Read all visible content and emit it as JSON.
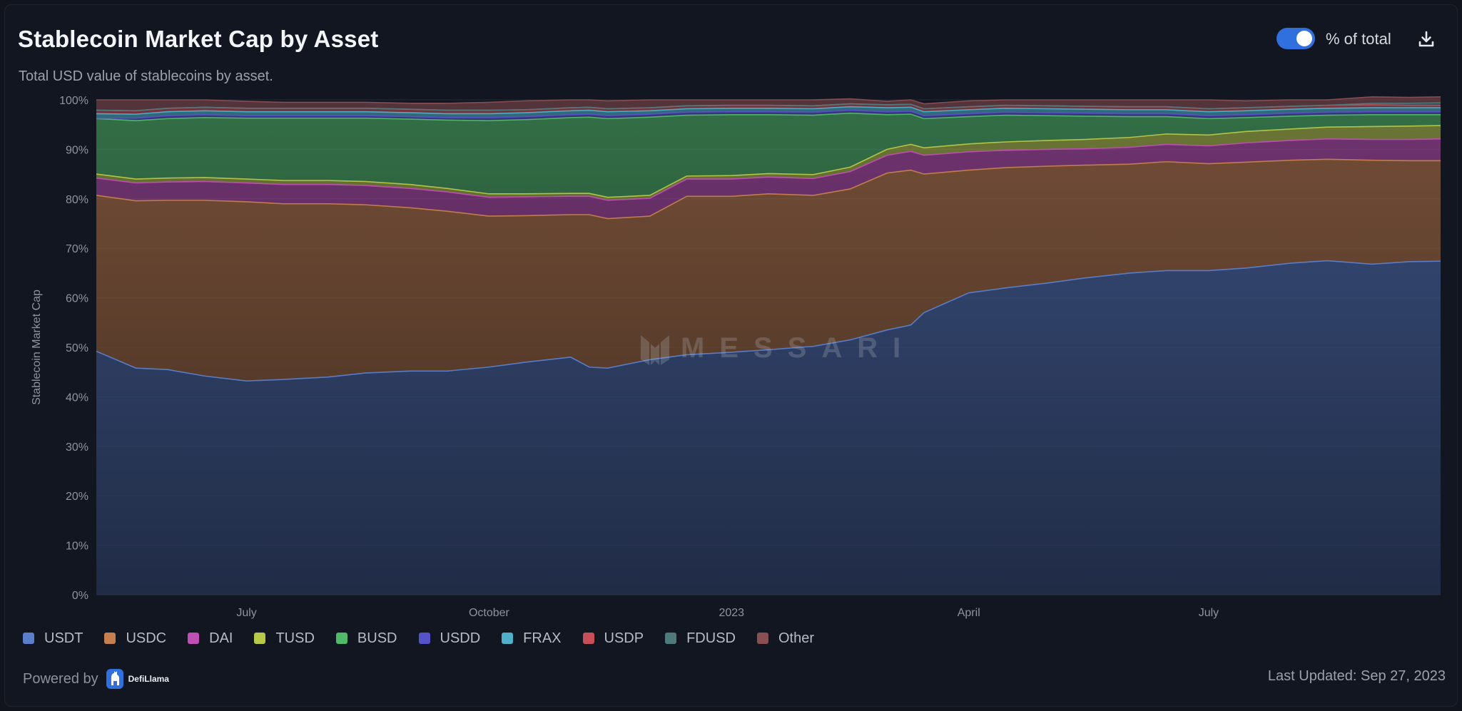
{
  "header": {
    "title": "Stablecoin Market Cap by Asset",
    "subtitle": "Total USD value of stablecoins by asset.",
    "toggle_label": "% of total",
    "toggle_on": true,
    "download_icon": "download-icon"
  },
  "watermark": "MESSARI",
  "footer": {
    "powered_by": "Powered by",
    "brand": "DefiLlama",
    "last_updated": "Last Updated: Sep 27, 2023"
  },
  "chart_data": {
    "type": "area",
    "stacked": true,
    "percent": true,
    "ylabel": "Stablecoin Market Cap",
    "ylim": [
      0,
      100
    ],
    "yticks": [
      "0%",
      "10%",
      "20%",
      "30%",
      "40%",
      "50%",
      "60%",
      "70%",
      "80%",
      "90%",
      "100%"
    ],
    "grid": true,
    "legend_position": "bottom-left",
    "xlim": [
      "2022-05-05",
      "2023-09-27"
    ],
    "xticks": [
      {
        "label": "July",
        "date": "2022-07-01"
      },
      {
        "label": "October",
        "date": "2022-10-01"
      },
      {
        "label": "2023",
        "date": "2023-01-01"
      },
      {
        "label": "April",
        "date": "2023-04-01"
      },
      {
        "label": "July",
        "date": "2023-07-01"
      }
    ],
    "x": [
      "2022-05-05",
      "2022-05-20",
      "2022-06-01",
      "2022-06-15",
      "2022-07-01",
      "2022-07-15",
      "2022-08-01",
      "2022-08-15",
      "2022-09-01",
      "2022-09-15",
      "2022-10-01",
      "2022-10-15",
      "2022-11-01",
      "2022-11-08",
      "2022-11-15",
      "2022-12-01",
      "2022-12-15",
      "2023-01-01",
      "2023-01-15",
      "2023-02-01",
      "2023-02-15",
      "2023-03-01",
      "2023-03-10",
      "2023-03-15",
      "2023-04-01",
      "2023-04-15",
      "2023-05-01",
      "2023-05-15",
      "2023-06-01",
      "2023-06-15",
      "2023-07-01",
      "2023-07-15",
      "2023-08-01",
      "2023-08-15",
      "2023-09-01",
      "2023-09-15",
      "2023-09-27"
    ],
    "series": [
      {
        "name": "USDT",
        "color": "#5b7fcc",
        "values": [
          49.2,
          45.8,
          45.5,
          44.2,
          43.2,
          43.5,
          44.0,
          44.8,
          45.2,
          45.2,
          46.0,
          47.0,
          48.0,
          46.0,
          45.8,
          47.5,
          48.5,
          49.0,
          49.5,
          50.2,
          51.5,
          53.5,
          54.5,
          57.0,
          61.0,
          62.0,
          63.0,
          64.0,
          65.0,
          65.5,
          65.5,
          66.0,
          67.0,
          67.5,
          66.8,
          67.3,
          67.4
        ]
      },
      {
        "name": "USDC",
        "color": "#c77f4d",
        "values": [
          31.5,
          33.8,
          34.2,
          35.5,
          36.2,
          35.5,
          35.0,
          34.0,
          33.0,
          32.3,
          30.5,
          29.6,
          28.8,
          30.8,
          30.2,
          29.0,
          32.0,
          31.5,
          31.5,
          30.5,
          30.5,
          31.7,
          31.3,
          28.0,
          24.8,
          24.3,
          23.6,
          22.8,
          22.0,
          22.0,
          21.6,
          21.4,
          20.8,
          20.5,
          21.0,
          20.4,
          20.3
        ]
      },
      {
        "name": "DAI",
        "color": "#c04fb5",
        "values": [
          3.5,
          3.6,
          3.7,
          3.8,
          3.8,
          3.9,
          3.9,
          3.9,
          3.9,
          3.9,
          3.8,
          3.8,
          3.7,
          3.7,
          3.7,
          3.6,
          3.5,
          3.5,
          3.4,
          3.4,
          3.5,
          3.6,
          3.8,
          3.8,
          3.7,
          3.5,
          3.4,
          3.3,
          3.4,
          3.5,
          3.6,
          3.9,
          4.0,
          4.1,
          4.2,
          4.3,
          4.4
        ]
      },
      {
        "name": "TUSD",
        "color": "#b6c949",
        "values": [
          0.8,
          0.8,
          0.8,
          0.8,
          0.8,
          0.8,
          0.8,
          0.8,
          0.8,
          0.7,
          0.7,
          0.6,
          0.6,
          0.6,
          0.6,
          0.6,
          0.6,
          0.7,
          0.7,
          0.8,
          0.9,
          1.2,
          1.4,
          1.5,
          1.6,
          1.7,
          1.8,
          1.9,
          2.0,
          2.1,
          2.2,
          2.3,
          2.3,
          2.4,
          2.6,
          2.7,
          2.7
        ]
      },
      {
        "name": "BUSD",
        "color": "#4fb968",
        "values": [
          11.2,
          11.8,
          12.0,
          12.1,
          12.3,
          12.6,
          12.6,
          12.8,
          13.2,
          13.8,
          14.8,
          15.0,
          15.3,
          15.4,
          15.9,
          15.8,
          12.3,
          12.3,
          11.9,
          12.0,
          10.9,
          7.0,
          6.1,
          5.9,
          5.5,
          5.4,
          5.0,
          4.7,
          4.2,
          3.5,
          3.3,
          2.8,
          2.6,
          2.4,
          2.4,
          2.3,
          2.2
        ]
      },
      {
        "name": "USDD",
        "color": "#5752c9",
        "values": [
          0.1,
          0.5,
          0.6,
          0.6,
          0.5,
          0.5,
          0.5,
          0.5,
          0.5,
          0.5,
          0.6,
          0.6,
          0.6,
          0.6,
          0.6,
          0.6,
          0.6,
          0.6,
          0.6,
          0.6,
          0.6,
          0.6,
          0.6,
          0.6,
          0.6,
          0.6,
          0.6,
          0.6,
          0.6,
          0.6,
          0.6,
          0.6,
          0.6,
          0.6,
          0.6,
          0.6,
          0.6
        ]
      },
      {
        "name": "FRAX",
        "color": "#4fb1c9",
        "values": [
          0.9,
          0.8,
          0.8,
          0.8,
          0.8,
          0.8,
          0.8,
          0.8,
          0.8,
          0.8,
          0.8,
          0.8,
          0.8,
          0.8,
          0.8,
          0.7,
          0.7,
          0.7,
          0.7,
          0.7,
          0.7,
          0.8,
          0.8,
          0.8,
          0.8,
          0.8,
          0.8,
          0.8,
          0.8,
          0.8,
          0.8,
          0.8,
          0.8,
          0.8,
          0.8,
          0.8,
          0.8
        ]
      },
      {
        "name": "USDP",
        "color": "#c94f57",
        "values": [
          0.7,
          0.7,
          0.7,
          0.7,
          0.7,
          0.7,
          0.7,
          0.7,
          0.7,
          0.7,
          0.7,
          0.6,
          0.6,
          0.6,
          0.6,
          0.6,
          0.6,
          0.6,
          0.6,
          0.6,
          0.6,
          0.6,
          0.6,
          0.6,
          0.6,
          0.6,
          0.6,
          0.6,
          0.6,
          0.6,
          0.6,
          0.6,
          0.6,
          0.6,
          0.6,
          0.5,
          0.5
        ]
      },
      {
        "name": "FDUSD",
        "color": "#4f7a7c",
        "values": [
          0,
          0,
          0,
          0,
          0,
          0,
          0,
          0,
          0,
          0,
          0,
          0,
          0,
          0,
          0,
          0,
          0,
          0,
          0,
          0,
          0,
          0,
          0,
          0,
          0,
          0,
          0,
          0,
          0,
          0,
          0,
          0,
          0,
          0,
          0.3,
          0.4,
          0.5
        ]
      },
      {
        "name": "Other",
        "color": "#8a4f52",
        "values": [
          2.1,
          2.2,
          1.7,
          1.5,
          1.4,
          1.2,
          1.2,
          1.2,
          1.2,
          1.4,
          1.6,
          1.8,
          1.6,
          1.5,
          1.6,
          1.6,
          1.2,
          1.1,
          1.1,
          1.2,
          1.0,
          0.7,
          0.9,
          1.0,
          1.2,
          1.1,
          1.2,
          1.3,
          1.4,
          1.4,
          1.8,
          1.4,
          1.3,
          1.1,
          1.3,
          1.2,
          1.2
        ]
      }
    ]
  }
}
